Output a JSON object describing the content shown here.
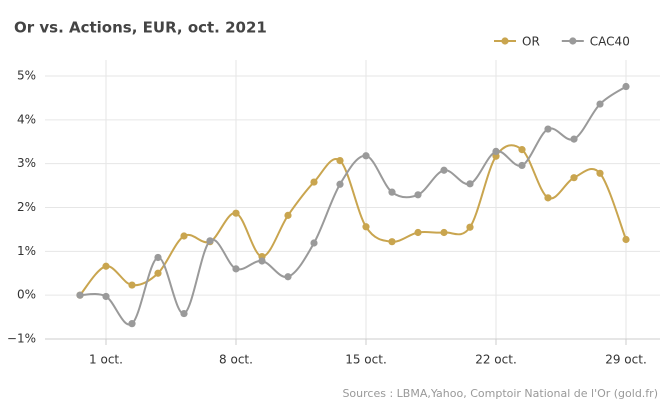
{
  "chart_data": {
    "type": "line",
    "title": "Or vs. Actions, EUR, oct. 2021",
    "source": "Sources : LBMA,Yahoo, Comptoir National de l'Or (gold.fr)",
    "categories": [
      null,
      "1 oct.",
      null,
      null,
      null,
      null,
      "8 oct.",
      null,
      null,
      null,
      null,
      "15 oct.",
      null,
      null,
      null,
      null,
      "22 oct.",
      null,
      null,
      null,
      null,
      "29 oct."
    ],
    "series": [
      {
        "name": "OR",
        "color": "#c9a54f",
        "values": [
          0,
          0.66,
          0.23,
          0.5,
          1.35,
          1.22,
          1.87,
          0.88,
          1.82,
          2.58,
          3.07,
          1.56,
          1.22,
          1.43,
          1.43,
          1.55,
          3.17,
          3.32,
          2.22,
          2.68,
          2.78,
          1.27
        ]
      },
      {
        "name": "CAC40",
        "color": "#9a9a9a",
        "values": [
          0,
          -0.03,
          -0.65,
          0.86,
          -0.42,
          1.24,
          0.6,
          0.78,
          0.42,
          1.19,
          2.53,
          3.18,
          2.35,
          2.29,
          2.85,
          2.54,
          3.28,
          2.96,
          3.79,
          3.56,
          4.36,
          4.76
        ]
      }
    ],
    "ylim": [
      -1,
      5
    ],
    "yticks": [
      {
        "value": -1,
        "label": "−1%"
      },
      {
        "value": 0,
        "label": "0%"
      },
      {
        "value": 1,
        "label": "1%"
      },
      {
        "value": 2,
        "label": "2%"
      },
      {
        "value": 3,
        "label": "3%"
      },
      {
        "value": 4,
        "label": "4%"
      },
      {
        "value": 5,
        "label": "5%"
      }
    ],
    "grid": true,
    "legend": "top-right"
  }
}
